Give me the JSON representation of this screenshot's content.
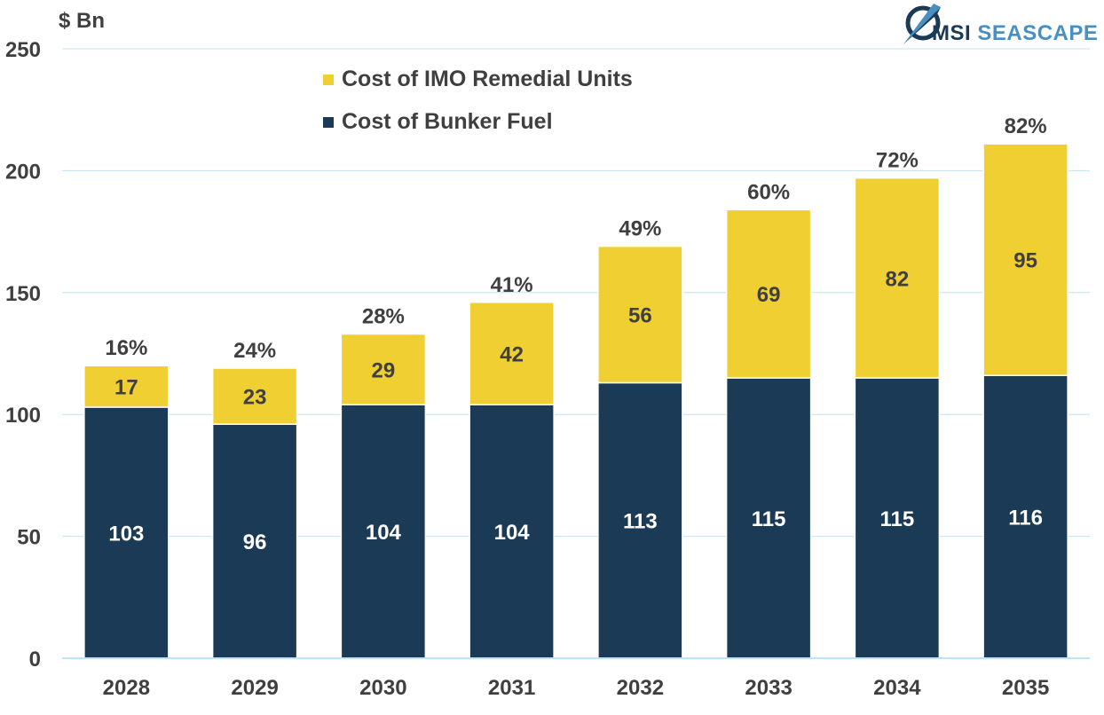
{
  "brand": {
    "logo_prefix": "MSI",
    "logo_suffix": "SEASCAPE"
  },
  "colors": {
    "remedial": "#f0cf33",
    "bunker": "#1b3a55",
    "grid": "#bfe3f3",
    "text": "#3f3f3f"
  },
  "chart_data": {
    "type": "bar",
    "stacked": true,
    "title": "",
    "ylabel": "$ Bn",
    "xlabel": "",
    "ylim": [
      0,
      250
    ],
    "yticks": [
      0,
      50,
      100,
      150,
      200,
      250
    ],
    "grid": true,
    "legend_position": "top-center",
    "categories": [
      "2028",
      "2029",
      "2030",
      "2031",
      "2032",
      "2033",
      "2034",
      "2035"
    ],
    "series": [
      {
        "name": "Cost of Bunker Fuel",
        "color": "#1b3a55",
        "values": [
          103,
          96,
          104,
          104,
          113,
          115,
          115,
          116
        ]
      },
      {
        "name": "Cost of IMO Remedial Units",
        "color": "#f0cf33",
        "values": [
          17,
          23,
          29,
          42,
          56,
          69,
          82,
          95
        ]
      }
    ],
    "legend_order": [
      1,
      0
    ],
    "annotations": [
      "16%",
      "24%",
      "28%",
      "41%",
      "49%",
      "60%",
      "72%",
      "82%"
    ]
  }
}
